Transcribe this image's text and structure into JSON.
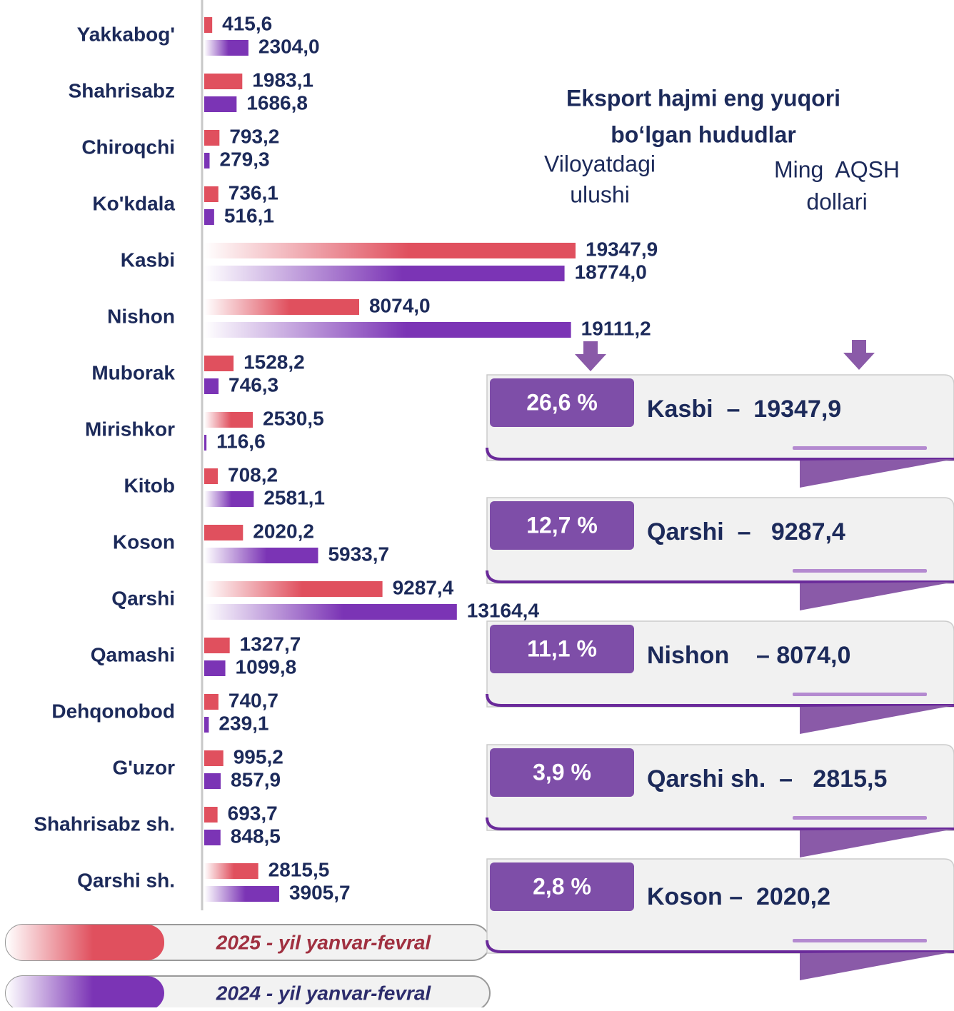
{
  "chart_data": {
    "type": "bar",
    "orientation": "horizontal",
    "title": "Eksport hajmi eng yuqori bo‘lgan hududlar",
    "share_header": [
      "Viloyatdagi",
      "ulushi"
    ],
    "value_header": [
      "Ming  AQSH",
      "dollari"
    ],
    "categories": [
      "Yakkabog'",
      "Shahrisabz",
      "Chiroqchi",
      "Ko'kdala",
      "Kasbi",
      "Nishon",
      "Muborak",
      "Mirishkor",
      "Kitob",
      "Koson",
      "Qarshi",
      "Qamashi",
      "Dehqonobod",
      "G'uzor",
      "Shahrisabz sh.",
      "Qarshi sh."
    ],
    "series": [
      {
        "name": "2025 - yil yanvar-fevral",
        "color": "#e0505e",
        "values": [
          415.6,
          1983.1,
          793.2,
          736.1,
          19347.9,
          8074.0,
          1528.2,
          2530.5,
          708.2,
          2020.2,
          9287.4,
          1327.7,
          740.7,
          995.2,
          693.7,
          2815.5
        ],
        "value_labels": [
          "415,6",
          "1983,1",
          "793,2",
          "736,1",
          "19347,9",
          "8074,0",
          "1528,2",
          "2530,5",
          "708,2",
          "2020,2",
          "9287,4",
          "1327,7",
          "740,7",
          "995,2",
          "693,7",
          "2815,5"
        ]
      },
      {
        "name": "2024 - yil yanvar-fevral",
        "color": "#7b34b5",
        "values": [
          2304.0,
          1686.8,
          279.3,
          516.1,
          18774.0,
          19111.2,
          746.3,
          116.6,
          2581.1,
          5933.7,
          13164.4,
          1099.8,
          239.1,
          857.9,
          848.5,
          3905.7
        ],
        "value_labels": [
          "2304,0",
          "1686,8",
          "279,3",
          "516,1",
          "18774,0",
          "19111,2",
          "746,3",
          "116,6",
          "2581,1",
          "5933,7",
          "13164,4",
          "1099,8",
          "239,1",
          "857,9",
          "848,5",
          "3905,7"
        ]
      }
    ],
    "highlights": [
      {
        "share": "26,6 %",
        "label": "Kasbi  –  19347,9"
      },
      {
        "share": "12,7 %",
        "label": "Qarshi  –   9287,4"
      },
      {
        "share": "11,1 %",
        "label": "Nishon    – 8074,0"
      },
      {
        "share": "3,9 %",
        "label": "Qarshi sh.  –   2815,5"
      },
      {
        "share": "2,8 %",
        "label": "Koson –  2020,2"
      }
    ]
  }
}
